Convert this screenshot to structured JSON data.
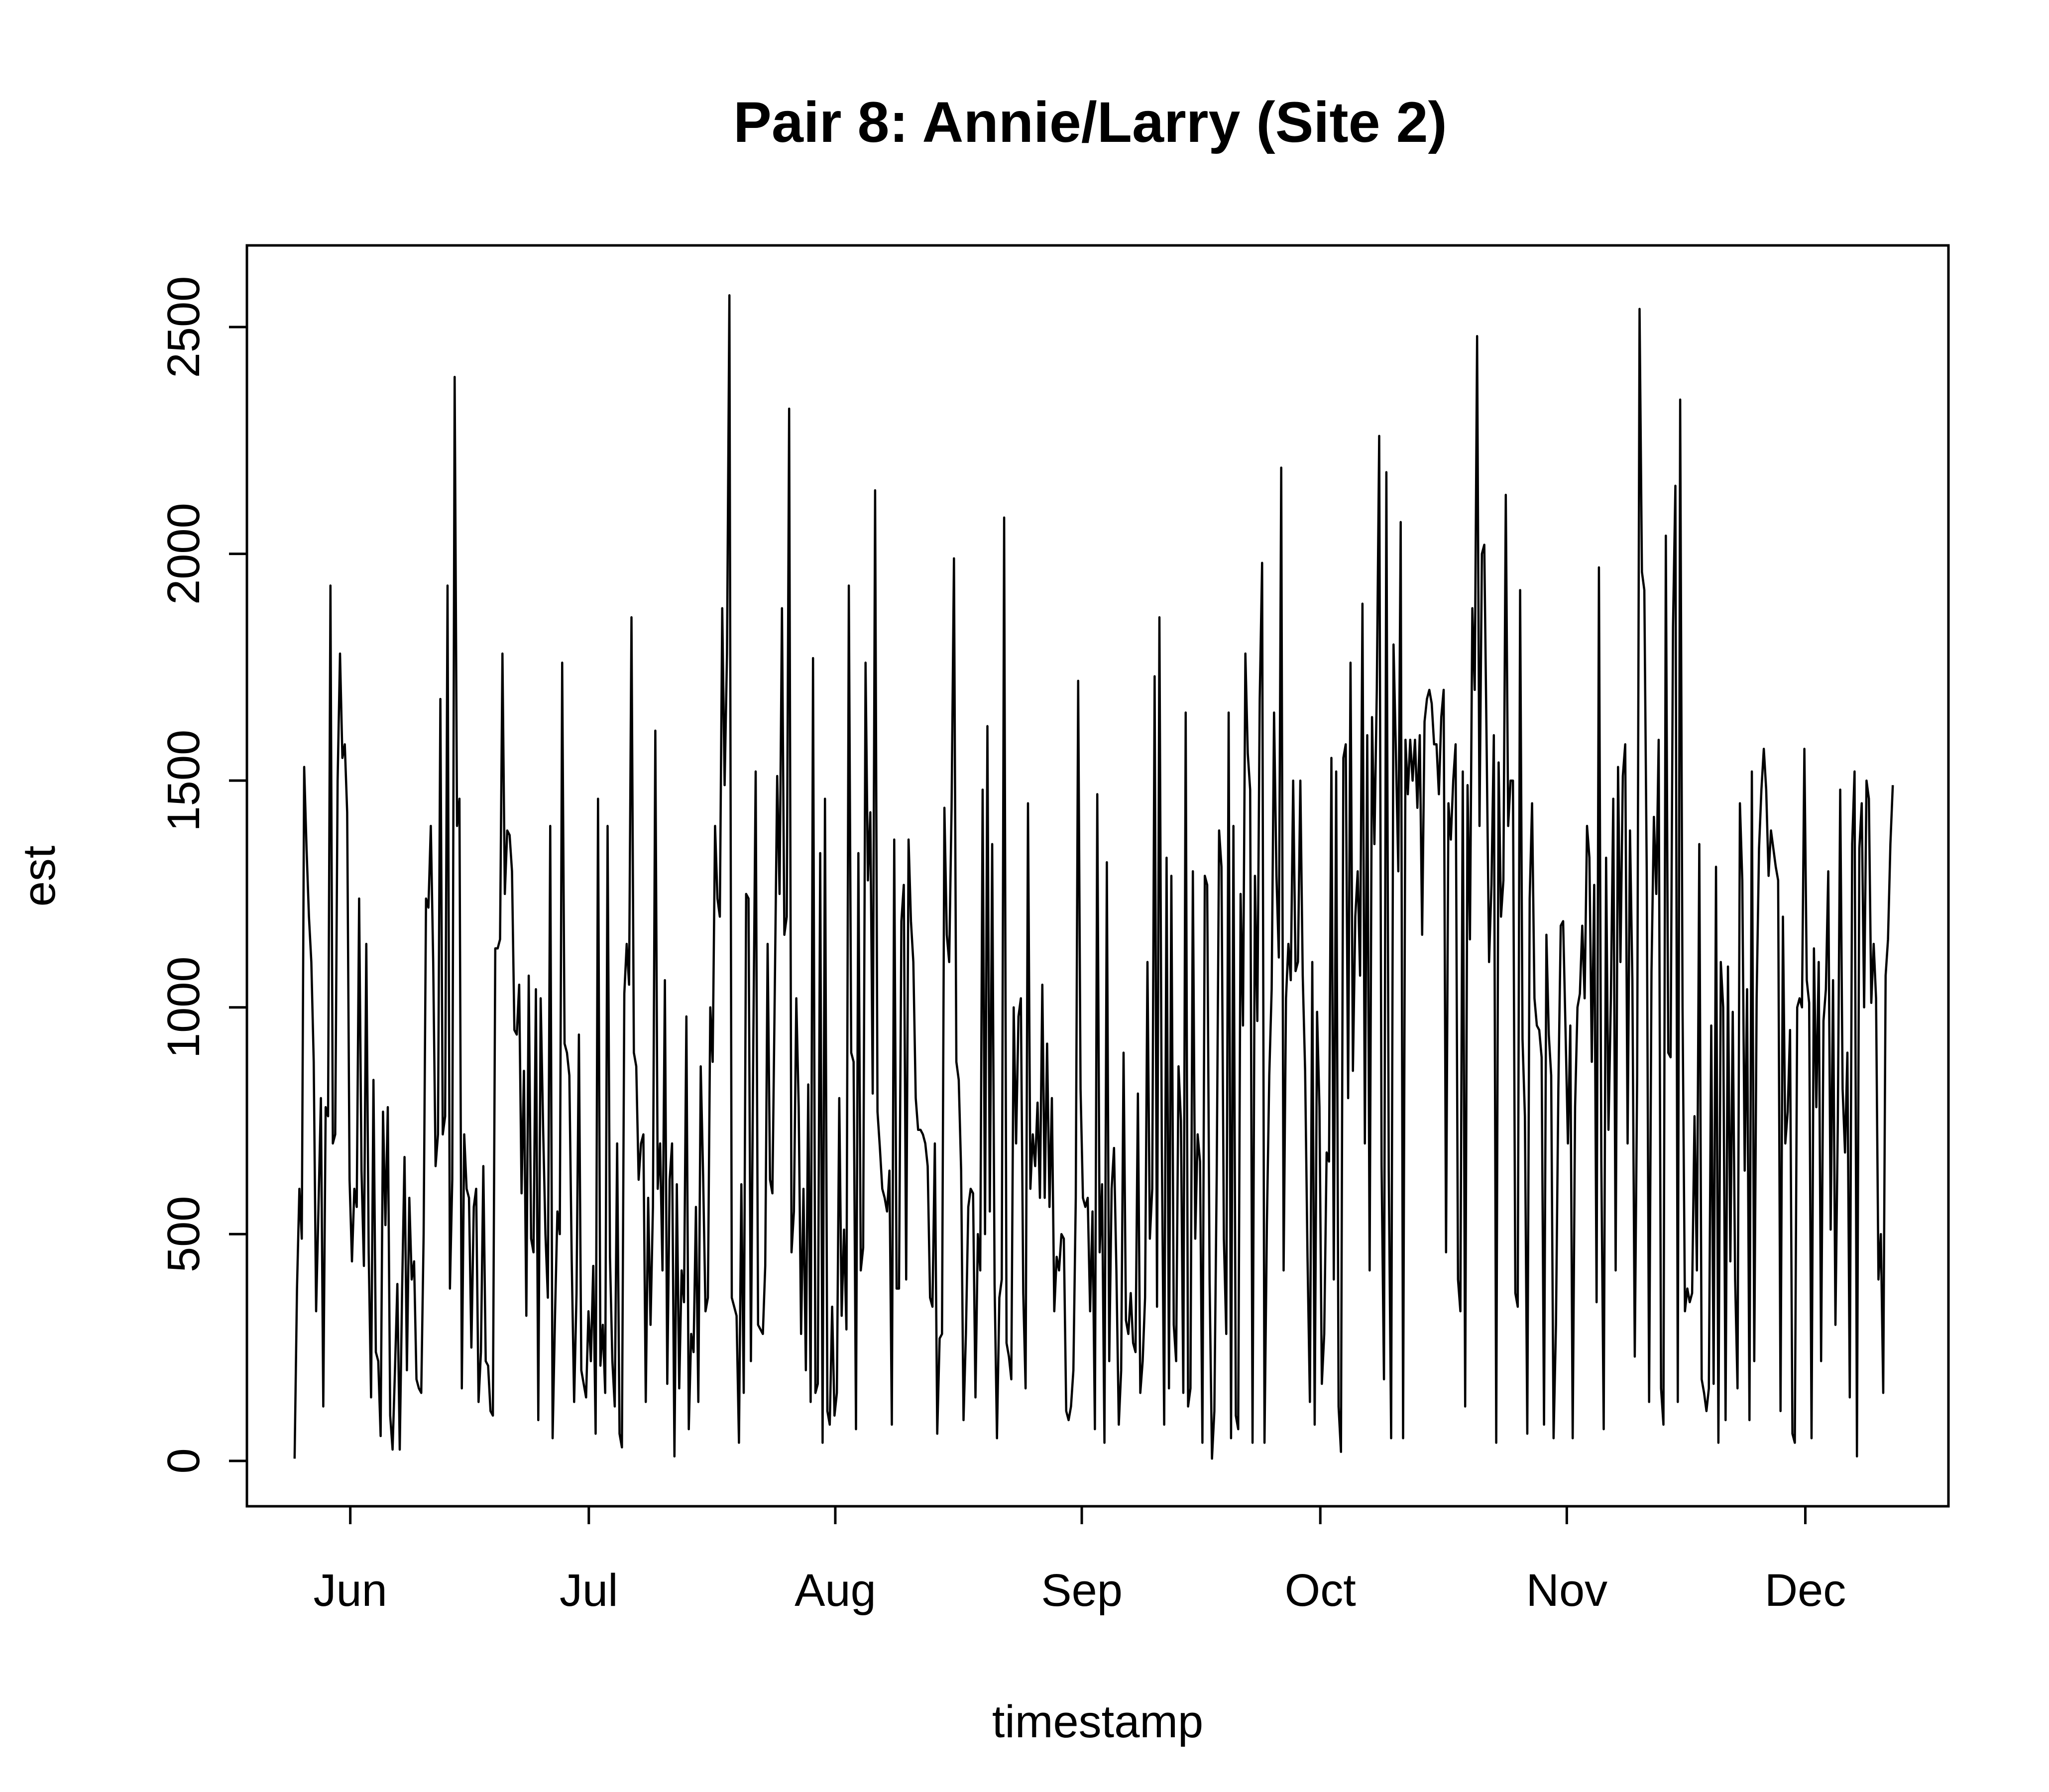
{
  "chart_data": {
    "type": "line",
    "title": "Pair 8: Annie/Larry (Site 2)",
    "xlabel": "timestamp",
    "ylabel": "est",
    "x_axis_type": "date",
    "x_start": "2015-05-25",
    "x_end": "2015-12-12",
    "x_range": [
      "2015-05-19",
      "2015-12-19"
    ],
    "ylim": [
      -100,
      2680
    ],
    "y_ticks": [
      0,
      500,
      1000,
      1500,
      2000,
      2500
    ],
    "x_ticks": [
      {
        "label": "Jun",
        "date": "2015-06-01"
      },
      {
        "label": "Jul",
        "date": "2015-07-01"
      },
      {
        "label": "Aug",
        "date": "2015-08-01"
      },
      {
        "label": "Sep",
        "date": "2015-09-01"
      },
      {
        "label": "Oct",
        "date": "2015-10-01"
      },
      {
        "label": "Nov",
        "date": "2015-11-01"
      },
      {
        "label": "Dec",
        "date": "2015-12-01"
      }
    ],
    "grid": false,
    "legend": "none",
    "series_color": "#000000",
    "series": [
      {
        "values": [
          5,
          380,
          600,
          490,
          1530,
          1350,
          1200,
          1100,
          880,
          330,
          560,
          800,
          120,
          780,
          760,
          1930,
          700,
          720,
          1500,
          1780,
          1550,
          1580,
          1430,
          620,
          440,
          600,
          560,
          1240,
          640,
          430,
          1140,
          460,
          140,
          840,
          240,
          220,
          55,
          770,
          520,
          780,
          100,
          25,
          200,
          390,
          25,
          380,
          670,
          200,
          580,
          400,
          440,
          180,
          160,
          150,
          500,
          1240,
          1220,
          1400,
          1100,
          650,
          720,
          1680,
          720,
          760,
          1930,
          380,
          620,
          2390,
          1400,
          1460,
          160,
          720,
          600,
          580,
          250,
          560,
          600,
          130,
          240,
          650,
          220,
          210,
          110,
          100,
          1130,
          1130,
          1150,
          1780,
          1250,
          1390,
          1380,
          1300,
          950,
          940,
          1050,
          590,
          860,
          320,
          1070,
          490,
          460,
          1040,
          90,
          1020,
          740,
          500,
          360,
          1400,
          50,
          320,
          550,
          500,
          1760,
          920,
          900,
          850,
          440,
          130,
          370,
          940,
          200,
          170,
          140,
          330,
          220,
          430,
          60,
          1460,
          210,
          300,
          150,
          1400,
          450,
          220,
          120,
          700,
          60,
          30,
          1030,
          1140,
          1050,
          1860,
          900,
          870,
          620,
          700,
          720,
          130,
          580,
          300,
          560,
          1610,
          600,
          700,
          420,
          1060,
          170,
          620,
          700,
          10,
          610,
          160,
          420,
          350,
          980,
          70,
          280,
          240,
          560,
          130,
          870,
          630,
          330,
          360,
          1000,
          880,
          1400,
          1240,
          1200,
          1880,
          1490,
          1780,
          2570,
          360,
          340,
          320,
          40,
          610,
          150,
          1250,
          1240,
          220,
          920,
          1520,
          300,
          290,
          280,
          430,
          1140,
          620,
          590,
          1040,
          1510,
          1250,
          1880,
          1160,
          1200,
          2320,
          460,
          550,
          1020,
          780,
          280,
          600,
          200,
          830,
          130,
          1770,
          150,
          170,
          1340,
          40,
          1460,
          110,
          80,
          340,
          100,
          150,
          800,
          320,
          510,
          290,
          1930,
          900,
          880,
          70,
          1340,
          420,
          470,
          1760,
          1280,
          1430,
          810,
          2140,
          770,
          690,
          600,
          580,
          550,
          640,
          80,
          1370,
          380,
          380,
          1190,
          1270,
          400,
          1370,
          1190,
          1100,
          800,
          730,
          730,
          720,
          700,
          650,
          360,
          340,
          700,
          60,
          270,
          280,
          1440,
          1160,
          1100,
          1440,
          1990,
          880,
          840,
          640,
          90,
          280,
          560,
          600,
          590,
          140,
          500,
          420,
          1480,
          500,
          1620,
          550,
          1360,
          390,
          50,
          360,
          400,
          2080,
          260,
          230,
          180,
          1000,
          700,
          980,
          1020,
          370,
          160,
          1450,
          600,
          720,
          650,
          790,
          580,
          1050,
          580,
          920,
          560,
          800,
          330,
          450,
          420,
          500,
          490,
          110,
          90,
          120,
          200,
          580,
          1720,
          820,
          580,
          560,
          580,
          330,
          550,
          70,
          1470,
          460,
          610,
          40,
          1320,
          220,
          600,
          690,
          420,
          80,
          200,
          900,
          310,
          280,
          370,
          260,
          240,
          810,
          150,
          220,
          360,
          1100,
          490,
          600,
          1730,
          340,
          1860,
          700,
          80,
          1330,
          160,
          1290,
          300,
          220,
          870,
          750,
          150,
          1650,
          120,
          160,
          1300,
          490,
          720,
          660,
          40,
          1290,
          1270,
          400,
          5,
          110,
          630,
          1390,
          1310,
          490,
          280,
          1650,
          50,
          1400,
          100,
          70,
          1250,
          960,
          1780,
          1560,
          1480,
          40,
          1290,
          970,
          1680,
          1980,
          40,
          520,
          850,
          1040,
          1650,
          1290,
          1110,
          2190,
          420,
          1020,
          1140,
          1060,
          1500,
          1080,
          1100,
          1500,
          1070,
          860,
          450,
          130,
          1100,
          80,
          990,
          780,
          170,
          280,
          680,
          660,
          1550,
          400,
          1520,
          120,
          20,
          1550,
          1580,
          800,
          1760,
          860,
          1200,
          1300,
          1070,
          1890,
          700,
          1600,
          420,
          1640,
          1360,
          1700,
          2260,
          650,
          180,
          2180,
          640,
          50,
          1800,
          1560,
          1300,
          2070,
          50,
          1590,
          1470,
          1590,
          1500,
          1590,
          1440,
          1600,
          1160,
          1630,
          1680,
          1700,
          1670,
          1580,
          1580,
          1470,
          1640,
          1700,
          460,
          1450,
          1370,
          1500,
          1580,
          400,
          330,
          1520,
          120,
          1490,
          1150,
          1880,
          1700,
          2480,
          1400,
          2000,
          2020,
          1570,
          1100,
          1270,
          1600,
          40,
          1540,
          1200,
          1280,
          2130,
          1400,
          1500,
          1500,
          370,
          340,
          1920,
          930,
          760,
          60,
          1240,
          1450,
          1020,
          960,
          950,
          890,
          80,
          1160,
          940,
          850,
          50,
          300,
          820,
          1180,
          1190,
          950,
          700,
          960,
          50,
          780,
          1000,
          1030,
          1180,
          1020,
          1400,
          1330,
          880,
          1270,
          350,
          1970,
          660,
          70,
          1330,
          730,
          1020,
          1460,
          420,
          1530,
          1100,
          1510,
          1580,
          700,
          1390,
          1060,
          230,
          850,
          2540,
          1960,
          1920,
          1300,
          130,
          1080,
          1420,
          1250,
          1590,
          160,
          80,
          2040,
          900,
          890,
          1840,
          2150,
          130,
          2340,
          1000,
          330,
          380,
          350,
          370,
          760,
          420,
          1360,
          180,
          150,
          110,
          160,
          960,
          170,
          1310,
          40,
          1100,
          1000,
          90,
          1090,
          440,
          990,
          400,
          160,
          1450,
          1280,
          640,
          1040,
          90,
          1520,
          220,
          1020,
          1350,
          1480,
          1570,
          1480,
          1290,
          1390,
          1350,
          1310,
          1280,
          110,
          1200,
          700,
          770,
          950,
          60,
          40,
          1000,
          1020,
          1000,
          1570,
          1060,
          1010,
          50,
          1130,
          780,
          1100,
          220,
          970,
          1040,
          1300,
          510,
          1060,
          300,
          750,
          1480,
          820,
          680,
          900,
          140,
          1360,
          1520,
          10,
          1350,
          1450,
          1000,
          1500,
          1460,
          1010,
          1140,
          1020,
          400,
          500,
          150,
          1070,
          1150,
          1360,
          1490
        ]
      }
    ]
  }
}
